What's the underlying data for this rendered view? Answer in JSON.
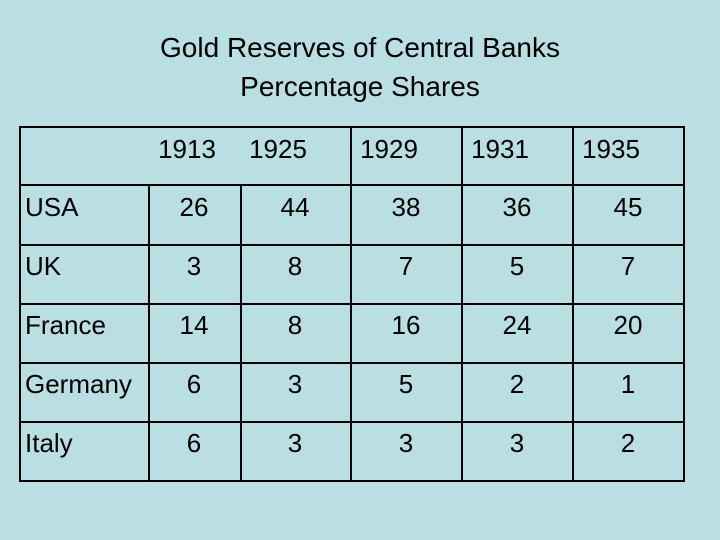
{
  "title_line1": "Gold Reserves of Central Banks",
  "title_line2": "Percentage Shares",
  "columns": [
    "1913",
    "1925",
    "1929",
    "1931",
    "1935"
  ],
  "rows": [
    {
      "label": "USA",
      "values": [
        "26",
        "44",
        "38",
        "36",
        "45"
      ]
    },
    {
      "label": "UK",
      "values": [
        "3",
        "8",
        "7",
        "5",
        "7"
      ]
    },
    {
      "label": "France",
      "values": [
        "14",
        "8",
        "16",
        "24",
        "20"
      ]
    },
    {
      "label": "Germany",
      "values": [
        "6",
        "3",
        "5",
        "2",
        "1"
      ]
    },
    {
      "label": "Italy",
      "values": [
        "6",
        "3",
        "3",
        "3",
        "2"
      ]
    }
  ],
  "chart_data": {
    "type": "table",
    "title": "Gold Reserves of Central Banks Percentage Shares",
    "categories": [
      "1913",
      "1925",
      "1929",
      "1931",
      "1935"
    ],
    "series": [
      {
        "name": "USA",
        "values": [
          26,
          44,
          38,
          36,
          45
        ]
      },
      {
        "name": "UK",
        "values": [
          3,
          8,
          7,
          5,
          7
        ]
      },
      {
        "name": "France",
        "values": [
          14,
          8,
          16,
          24,
          20
        ]
      },
      {
        "name": "Germany",
        "values": [
          6,
          3,
          5,
          2,
          1
        ]
      },
      {
        "name": "Italy",
        "values": [
          6,
          3,
          3,
          3,
          2
        ]
      }
    ]
  }
}
